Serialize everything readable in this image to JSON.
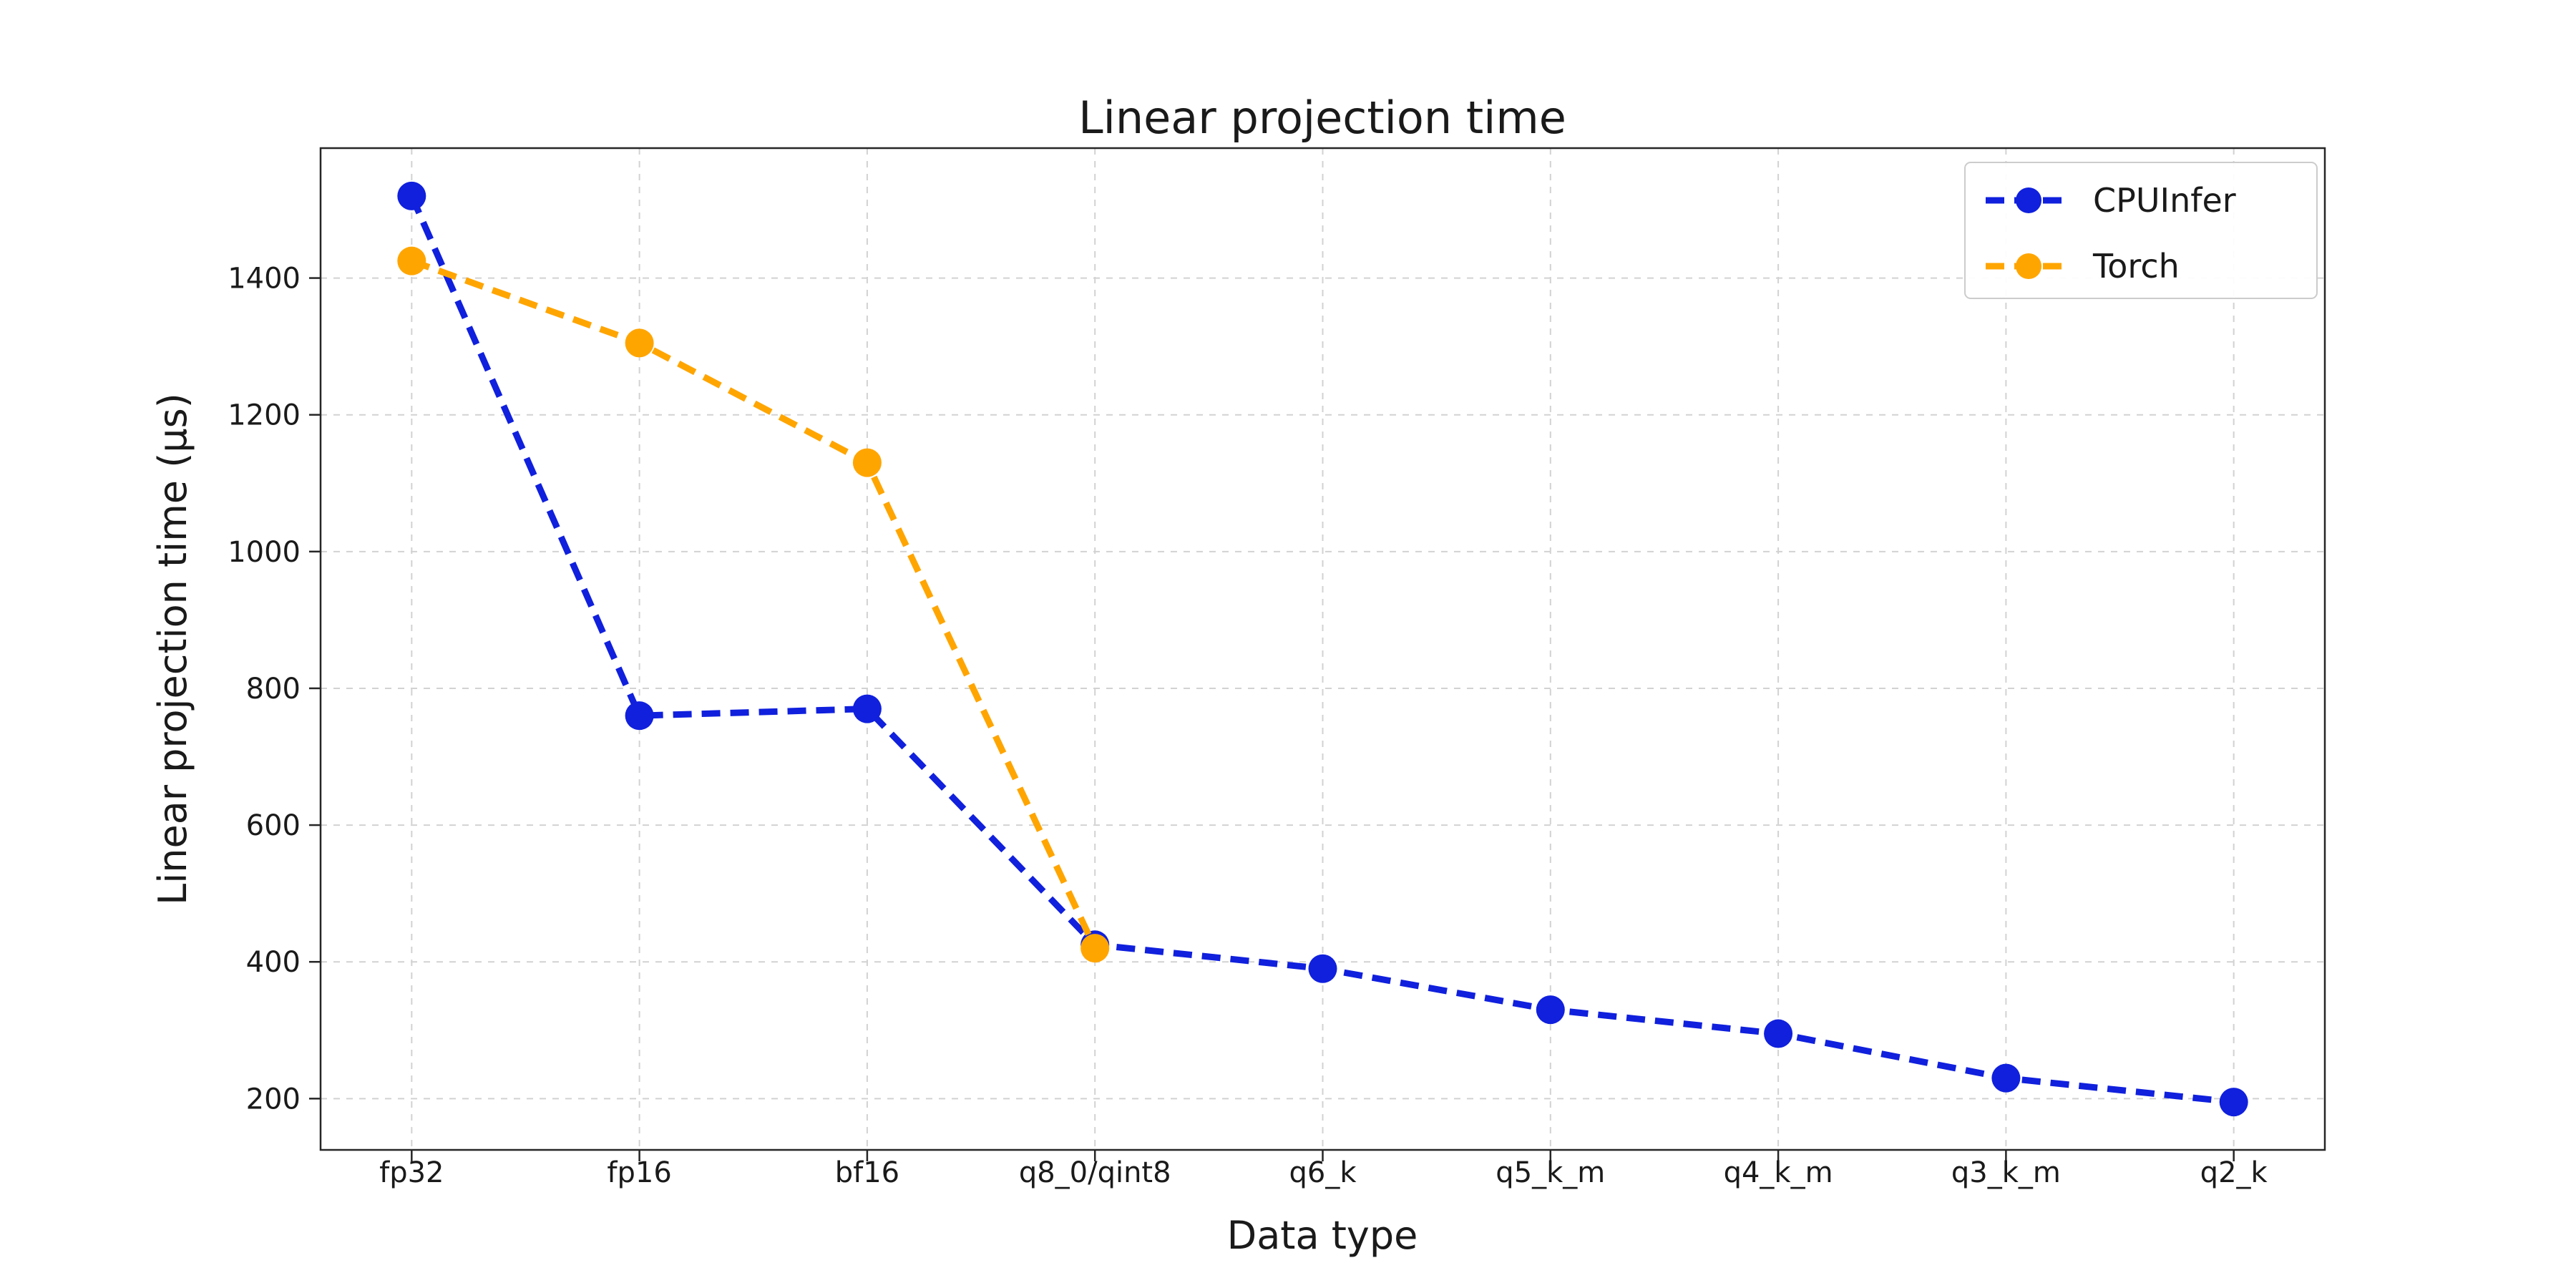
{
  "chart_data": {
    "type": "line",
    "title": "Linear projection time",
    "xlabel": "Data type",
    "ylabel": "Linear projection time (μs)",
    "categories": [
      "fp32",
      "fp16",
      "bf16",
      "q8_0/qint8",
      "q6_k",
      "q5_k_m",
      "q4_k_m",
      "q3_k_m",
      "q2_k"
    ],
    "series": [
      {
        "name": "CPUInfer",
        "color": "#1020dd",
        "values": [
          1520,
          760,
          770,
          425,
          390,
          330,
          295,
          230,
          195
        ]
      },
      {
        "name": "Torch",
        "color": "#ffa500",
        "values": [
          1425,
          1305,
          1130,
          420,
          null,
          null,
          null,
          null,
          null
        ]
      }
    ],
    "y_ticks": [
      200,
      400,
      600,
      800,
      1000,
      1200,
      1400
    ],
    "ylim": [
      125,
      1590
    ],
    "grid": true,
    "grid_style": "dashed",
    "line_style": "dashed",
    "marker": "circle",
    "legend_position": "upper right"
  }
}
